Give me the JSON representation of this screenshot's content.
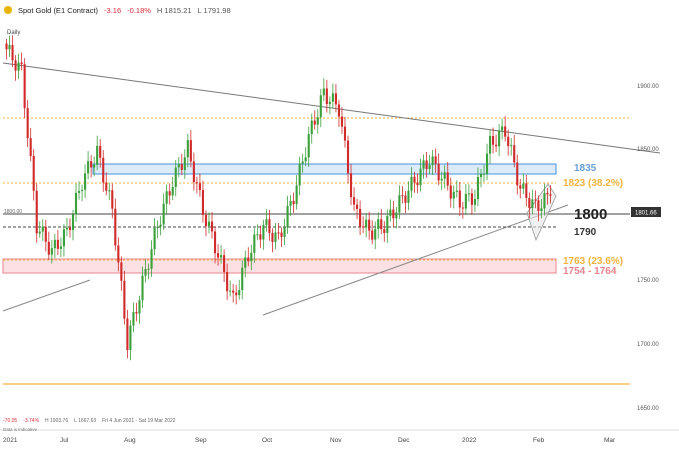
{
  "header": {
    "title": "Spot Gold (E1 Contract)",
    "change": "-3.16",
    "change_pct": "-0.18%",
    "high": "H 1815.21",
    "low": "L 1791.98"
  },
  "interval": "Daily",
  "bottom_stats": {
    "change": "-70.05",
    "change_pct": "-3.74%",
    "high": "H 1903.76",
    "low": "L 1667.63",
    "range": "Fri 4 Jun 2021 - Sat 19 Mar 2022"
  },
  "indicative_note": "Data is indicative",
  "price_axis": {
    "ticks": [
      {
        "value": 1900,
        "label": "1900.00"
      },
      {
        "value": 1850,
        "label": "1850.00"
      },
      {
        "value": 1750,
        "label": "1750.00"
      },
      {
        "value": 1700,
        "label": "1700.00"
      },
      {
        "value": 1650,
        "label": "1650.00"
      }
    ],
    "current_label": "1801.66",
    "left_marker": "1800.00"
  },
  "time_axis": [
    "2021",
    "Jul",
    "Aug",
    "Sep",
    "Oct",
    "Nov",
    "Dec",
    "2022",
    "Feb",
    "Mar"
  ],
  "levels": {
    "l1835": "1835",
    "l1823": "1823 (38.2%)",
    "l1800": "1800",
    "l1790": "1790",
    "l1763": "1763 (23.6%)",
    "l1754": "1754 - 1764"
  },
  "colors": {
    "bull": "#3aa03a",
    "bear": "#d12a2a",
    "fib": "#f2b33d",
    "zone_blue": "#4a90d9",
    "zone_red": "#e8868c"
  },
  "chart_data": {
    "type": "candlestick",
    "title": "Spot Gold (E1 Contract)",
    "ylim": [
      1640,
      1920
    ],
    "price_levels": [
      1835,
      1823,
      1800,
      1790,
      1763,
      1754
    ],
    "approx_closes": [
      1900,
      1885,
      1780,
      1762,
      1775,
      1810,
      1830,
      1790,
      1700,
      1740,
      1780,
      1810,
      1832,
      1790,
      1760,
      1728,
      1760,
      1780,
      1770,
      1800,
      1840,
      1870,
      1860,
      1790,
      1775,
      1780,
      1795,
      1810,
      1825,
      1810,
      1795,
      1800,
      1835,
      1845,
      1805,
      1792,
      1800
    ]
  }
}
